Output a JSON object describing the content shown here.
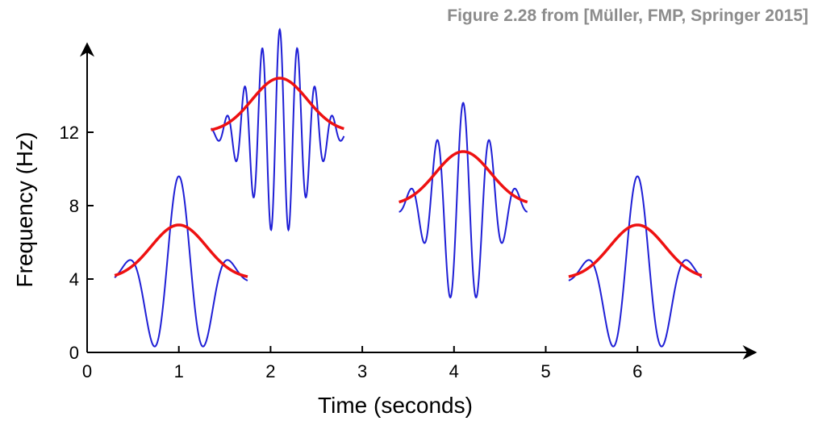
{
  "credit": "Figure 2.28 from [Müller, FMP, Springer 2015]",
  "chart_data": {
    "type": "line",
    "title": "",
    "xlabel": "Time (seconds)",
    "ylabel": "Frequency (Hz)",
    "xlim": [
      0,
      7.3
    ],
    "ylim": [
      0,
      15.5
    ],
    "xticks": [
      "0",
      "1",
      "2",
      "3",
      "4",
      "5",
      "6"
    ],
    "yticks": [
      "0",
      "4",
      "8",
      "12"
    ],
    "grid": false,
    "colors": {
      "wave": "#1f1fd6",
      "envelope": "#ee1111"
    },
    "atoms": [
      {
        "center_time": 1.0,
        "frequency": 4,
        "start": 0.3,
        "end": 1.75
      },
      {
        "center_time": 2.1,
        "frequency": 12,
        "start": 1.35,
        "end": 2.8
      },
      {
        "center_time": 4.1,
        "frequency": 8,
        "start": 3.4,
        "end": 4.8
      },
      {
        "center_time": 6.0,
        "frequency": 4,
        "start": 5.25,
        "end": 6.7
      }
    ]
  }
}
